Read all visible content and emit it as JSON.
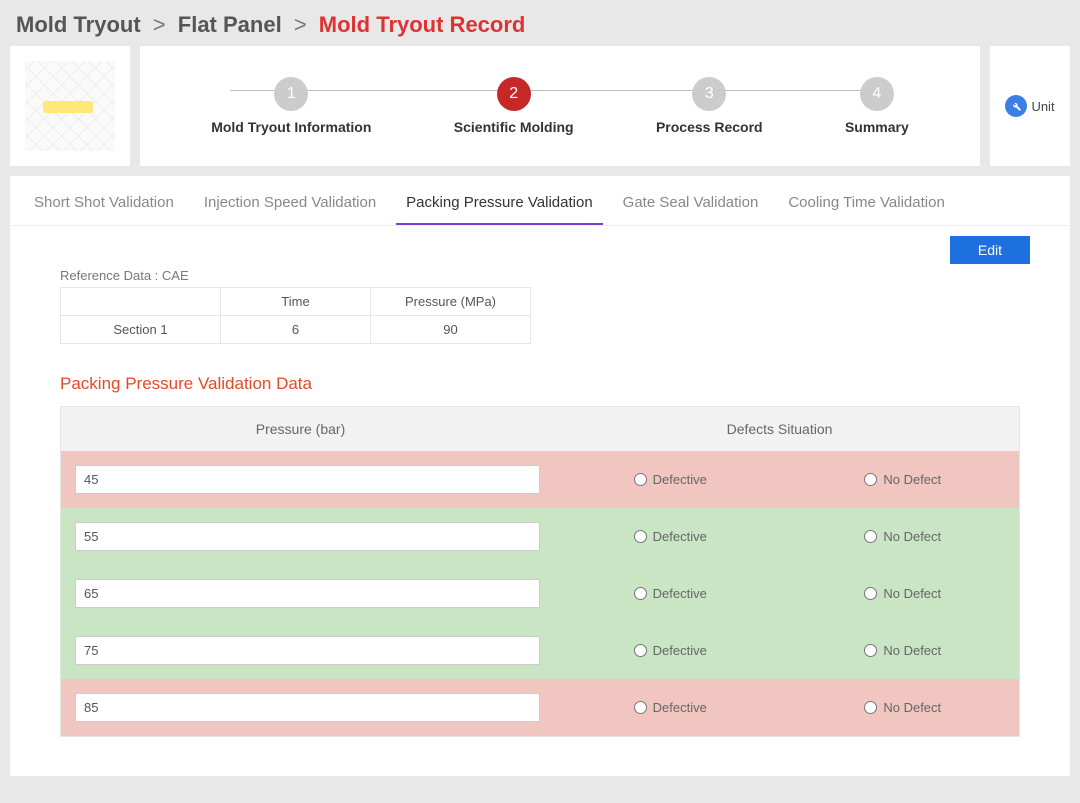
{
  "breadcrumb": {
    "a": "Mold Tryout",
    "b": "Flat Panel",
    "c": "Mold Tryout Record"
  },
  "steps": [
    {
      "num": "1",
      "label": "Mold Tryout Information"
    },
    {
      "num": "2",
      "label": "Scientific Molding"
    },
    {
      "num": "3",
      "label": "Process Record"
    },
    {
      "num": "4",
      "label": "Summary"
    }
  ],
  "active_step_index": 1,
  "unit_label": "Unit",
  "tabs": [
    "Short Shot Validation",
    "Injection Speed Validation",
    "Packing Pressure Validation",
    "Gate Seal Validation",
    "Cooling Time Validation"
  ],
  "active_tab_index": 2,
  "edit_label": "Edit",
  "reference": {
    "label": "Reference Data : CAE",
    "headers": [
      "",
      "Time",
      "Pressure (MPa)"
    ],
    "row": [
      "Section 1",
      "6",
      "90"
    ]
  },
  "section_title": "Packing Pressure Validation Data",
  "data_headers": [
    "Pressure (bar)",
    "Defects Situation"
  ],
  "radio_labels": {
    "defective": "Defective",
    "no_defect": "No Defect"
  },
  "rows": [
    {
      "pressure": "45",
      "status": "red"
    },
    {
      "pressure": "55",
      "status": "green"
    },
    {
      "pressure": "65",
      "status": "green"
    },
    {
      "pressure": "75",
      "status": "green"
    },
    {
      "pressure": "85",
      "status": "red"
    }
  ],
  "colors": {
    "accent_red": "#c62828",
    "row_red": "#f1c6c0",
    "row_green": "#c9e5c4",
    "tab_underline": "#7a3fd1",
    "edit_btn": "#1e6fe0"
  }
}
